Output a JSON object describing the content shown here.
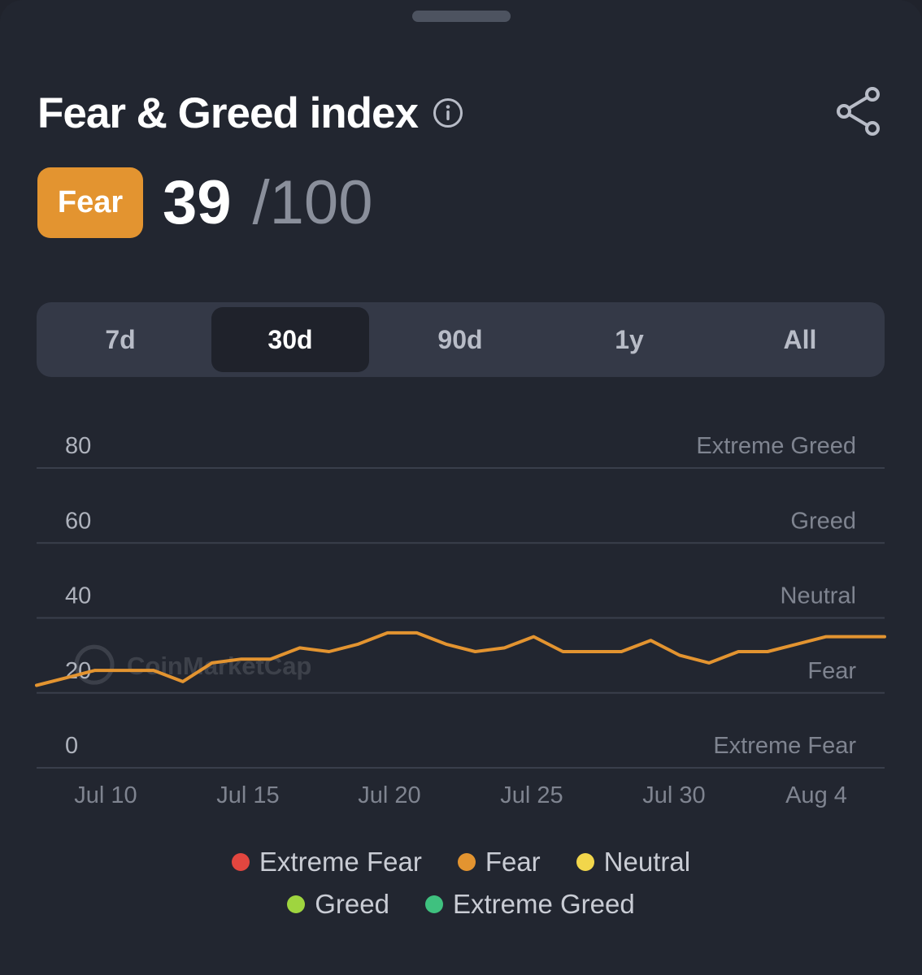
{
  "header": {
    "title": "Fear & Greed index",
    "info_icon": "info-circle-icon",
    "share_icon": "share-icon"
  },
  "score": {
    "label": "Fear",
    "value": "39",
    "max": "/100",
    "badge_color": "#e39430"
  },
  "tabs": [
    {
      "label": "7d",
      "active": false
    },
    {
      "label": "30d",
      "active": true
    },
    {
      "label": "90d",
      "active": false
    },
    {
      "label": "1y",
      "active": false
    },
    {
      "label": "All",
      "active": false
    }
  ],
  "chart_data": {
    "type": "line",
    "yticks": [
      "0",
      "20",
      "40",
      "60",
      "80"
    ],
    "ylim": [
      0,
      80
    ],
    "zones": [
      "Extreme Fear",
      "Fear",
      "Neutral",
      "Greed",
      "Extreme Greed"
    ],
    "xticks": [
      "Jul 10",
      "Jul 15",
      "Jul 20",
      "Jul 25",
      "Jul 30",
      "Aug 4"
    ],
    "x": [
      "Jul 8",
      "Jul 9",
      "Jul 10",
      "Jul 11",
      "Jul 12",
      "Jul 13",
      "Jul 14",
      "Jul 15",
      "Jul 16",
      "Jul 17",
      "Jul 18",
      "Jul 19",
      "Jul 20",
      "Jul 21",
      "Jul 22",
      "Jul 23",
      "Jul 24",
      "Jul 25",
      "Jul 26",
      "Jul 27",
      "Jul 28",
      "Jul 29",
      "Jul 30",
      "Jul 31",
      "Aug 1",
      "Aug 2",
      "Aug 3",
      "Aug 4",
      "Aug 5",
      "Aug 6"
    ],
    "values": [
      22,
      24,
      26,
      26,
      26,
      23,
      28,
      29,
      29,
      32,
      31,
      33,
      36,
      36,
      33,
      31,
      32,
      35,
      31,
      31,
      31,
      34,
      30,
      28,
      31,
      31,
      33,
      35,
      35,
      35
    ],
    "line_color": "#e39430",
    "watermark": "CoinMarketCap",
    "grid": true
  },
  "legend": [
    {
      "label": "Extreme Fear",
      "color": "#e2463f"
    },
    {
      "label": "Fear",
      "color": "#e39430"
    },
    {
      "label": "Neutral",
      "color": "#f2d64b"
    },
    {
      "label": "Greed",
      "color": "#9fd53f"
    },
    {
      "label": "Extreme Greed",
      "color": "#3fc17f"
    }
  ]
}
